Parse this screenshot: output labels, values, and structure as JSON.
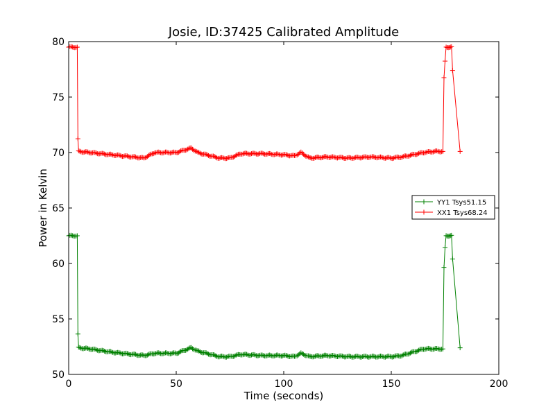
{
  "chart_data": {
    "type": "line",
    "title": "Josie, ID:37425 Calibrated Amplitude",
    "xlabel": "Time (seconds)",
    "ylabel": "Power in Kelvin",
    "xlim": [
      0,
      200
    ],
    "ylim": [
      50,
      80
    ],
    "xticks": [
      "0",
      "50",
      "100",
      "150",
      "200"
    ],
    "yticks": [
      "50",
      "55",
      "60",
      "65",
      "70",
      "75",
      "80"
    ],
    "legend_position": "center-right",
    "grid": false,
    "marker": "plus",
    "series": [
      {
        "name": "YY1 Tsys51.15",
        "color": "#008000",
        "x": [
          0,
          4,
          4.3,
          4.6,
          10,
          20,
          30,
          35,
          40,
          50,
          57,
          60,
          70,
          75,
          80,
          90,
          100,
          105,
          108,
          112,
          120,
          130,
          140,
          150,
          155,
          160,
          165,
          170,
          174,
          174.5,
          175,
          175.5,
          178,
          178.5,
          182
        ],
        "y": [
          62.5,
          62.5,
          53.6,
          52.4,
          52.3,
          52.0,
          51.8,
          51.7,
          51.9,
          51.9,
          52.4,
          52.1,
          51.6,
          51.6,
          51.8,
          51.7,
          51.7,
          51.6,
          51.9,
          51.6,
          51.7,
          51.6,
          51.6,
          51.6,
          51.7,
          52.0,
          52.3,
          52.3,
          52.3,
          59.6,
          61.4,
          62.5,
          62.5,
          60.4,
          52.4
        ]
      },
      {
        "name": "XX1 Tsys68.24",
        "color": "#ff0000",
        "x": [
          0,
          4,
          4.3,
          4.6,
          10,
          20,
          30,
          35,
          40,
          50,
          57,
          60,
          70,
          75,
          80,
          90,
          100,
          105,
          108,
          112,
          120,
          130,
          140,
          150,
          155,
          160,
          165,
          170,
          174,
          174.5,
          175,
          175.5,
          178,
          178.5,
          182
        ],
        "y": [
          79.5,
          79.5,
          71.2,
          70.1,
          70.0,
          69.8,
          69.6,
          69.5,
          70.0,
          70.0,
          70.4,
          70.0,
          69.5,
          69.5,
          69.9,
          69.9,
          69.8,
          69.7,
          70.0,
          69.5,
          69.6,
          69.5,
          69.6,
          69.5,
          69.6,
          69.8,
          70.0,
          70.1,
          70.1,
          76.7,
          78.2,
          79.5,
          79.5,
          77.4,
          70.1
        ]
      }
    ]
  }
}
